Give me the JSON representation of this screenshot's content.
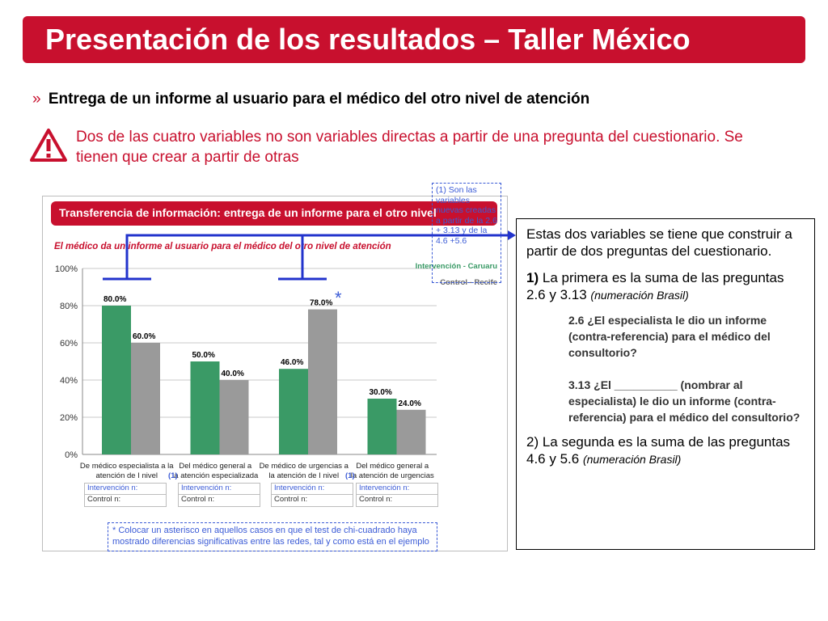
{
  "slide": {
    "title": "Presentación de los resultados – Taller México",
    "bullet_marker": "»",
    "bullet": "Entrega de un informe al usuario para el médico del otro nivel de atención",
    "warning_icon": "warning-triangle-icon",
    "warning_text": "Dos de las cuatro variables no son variables directas a partir de una pregunta del cuestionario. Se tienen que crear a partir de otras",
    "accent_color": "#c8102e"
  },
  "figure": {
    "banner": "Transferencia de información: entrega de un informe para el otro nivel",
    "subtitle": "El médico da un informe al usuario para el médico del otro nivel de atención",
    "legend": {
      "series1": "Intervención - Caruaru",
      "series2": "Control - Recife"
    },
    "note_box": "(1) Son las variables nuevas creadas a partir de la 2.6 + 3.13 y de la 4.6 +5.6",
    "asterisk_note": "* Colocar un asterisco en aquellos casos en que el test de chi-cuadrado haya mostrado diferencias significativas entre las redes, tal y como está en el ejemplo",
    "star": "*",
    "footnote_marker": "(1)",
    "input_rows": {
      "intervention": "Intervención n:",
      "control": "Control n:"
    }
  },
  "chart_data": {
    "type": "bar",
    "title": "El médico da un informe al usuario para el médico del otro nivel de atención",
    "categories": [
      "De médico especialista a la atención de I nivel",
      "Del médico general a la atención especializada",
      "De médico de urgencias a la atención de I nivel",
      "Del médico general a la atención de urgencias"
    ],
    "series": [
      {
        "name": "Intervención - Caruaru",
        "color": "#3a9a66",
        "values": [
          80.0,
          50.0,
          46.0,
          30.0
        ]
      },
      {
        "name": "Control - Recife",
        "color": "#9a9a9a",
        "values": [
          60.0,
          40.0,
          78.0,
          24.0
        ]
      }
    ],
    "value_labels": [
      [
        "80.0%",
        "50.0%",
        "46.0%",
        "30.0%"
      ],
      [
        "60.0%",
        "40.0%",
        "78.0%",
        "24.0%"
      ]
    ],
    "yticks": [
      "0%",
      "20%",
      "40%",
      "60%",
      "80%",
      "100%"
    ],
    "ylim": [
      0,
      100
    ],
    "grid": true,
    "legend_position": "top-right"
  },
  "side_panel": {
    "intro": "Estas dos variables se tiene que construir a partir de dos preguntas del cuestionario.",
    "item1_num": "1)",
    "item1_text": "La primera es la suma de las preguntas 2.6 y 3.13",
    "item1_note": "(numeración Brasil)",
    "q26": "2.6 ¿El especialista le dio un informe (contra-referencia) para el médico del consultorio?",
    "q313": "3.13 ¿El __________ (nombrar al especialista) le dio un informe (contra-referencia) para el médico del consultorio?",
    "item2_text": "2) La segunda es la suma de las preguntas 4.6 y 5.6",
    "item2_note": "(numeración Brasil)"
  }
}
